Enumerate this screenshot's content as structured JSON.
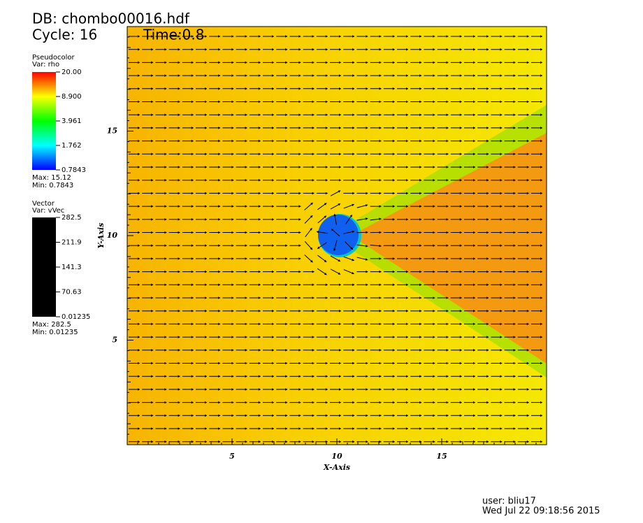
{
  "chart_data": {
    "type": "field",
    "title": "DB: chombo00016.hdf",
    "cycle": "Cycle: 16",
    "time": "Time:0.8",
    "x_label": "X-Axis",
    "y_label": "Y-Axis",
    "xlim": [
      0,
      20
    ],
    "ylim": [
      0,
      20
    ],
    "xticks": [
      5,
      10,
      15
    ],
    "yticks": [
      5,
      10,
      15
    ],
    "legends": [
      {
        "title": "Pseudocolor",
        "var": "Var: rho",
        "log": true,
        "colors": [
          "#0000ff",
          "#00ffff",
          "#00ff00",
          "#ffff00",
          "#ff0000"
        ],
        "ticks": [
          {
            "value": 20,
            "label": "20.00"
          },
          {
            "value": 8.9,
            "label": "8.900"
          },
          3.961,
          1.762,
          0.7843
        ],
        "max": "Max:  15.12",
        "min": "Min:  0.7843"
      },
      {
        "title": "Vector",
        "var": "Var: vVec",
        "log": false,
        "colors": [
          "#000000",
          "#000000"
        ],
        "ticks": [
          282.5,
          211.9,
          141.3,
          70.63,
          0.01235
        ],
        "max": "Max:  282.5",
        "min": "Min:  0.01235"
      }
    ],
    "user": "user: bliu17",
    "date": "Wed Jul 22 09:18:56 2015"
  }
}
